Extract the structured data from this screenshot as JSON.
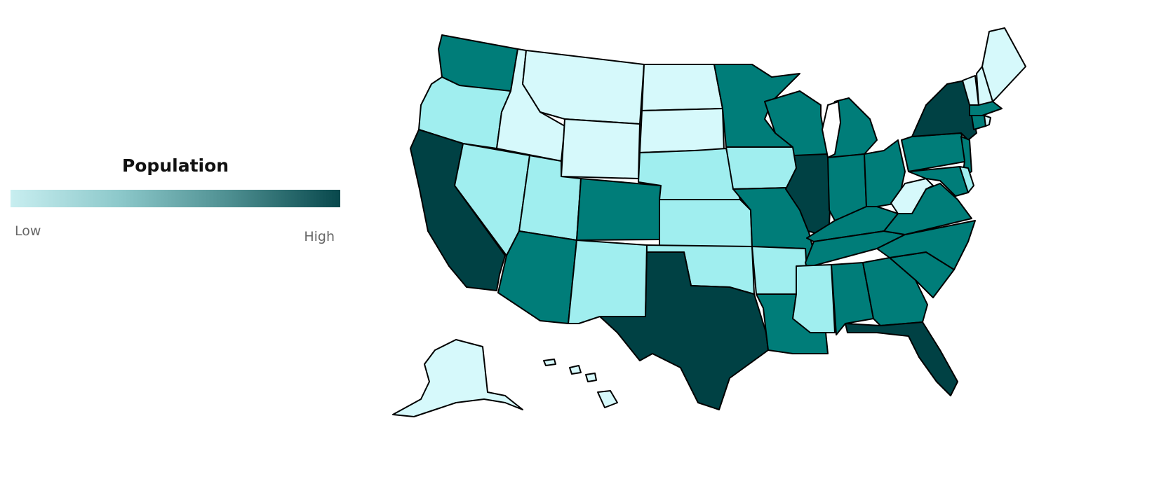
{
  "legend": {
    "title": "Population",
    "low_label": "Low",
    "high_label": "High",
    "color_low": "#c8eef0",
    "color_high": "#08484c"
  },
  "bin_colors": {
    "1": "#d6f9fb",
    "2": "#a0eeef",
    "3": "#007d79",
    "4": "#004144"
  },
  "chart_data": {
    "type": "choropleth",
    "measure": "Population",
    "scale": "ordinal bins from Low (1) to High (4)",
    "states": {
      "WA": 3,
      "OR": 2,
      "CA": 4,
      "ID": 1,
      "NV": 2,
      "MT": 1,
      "WY": 1,
      "UT": 2,
      "AZ": 3,
      "CO": 3,
      "NM": 2,
      "ND": 1,
      "SD": 1,
      "NE": 2,
      "KS": 2,
      "OK": 2,
      "TX": 4,
      "MN": 3,
      "IA": 2,
      "MO": 3,
      "AR": 2,
      "LA": 3,
      "WI": 3,
      "IL": 4,
      "MI": 3,
      "IN": 3,
      "OH": 3,
      "KY": 3,
      "TN": 3,
      "MS": 2,
      "AL": 3,
      "GA": 3,
      "FL": 4,
      "SC": 3,
      "NC": 3,
      "VA": 3,
      "WV": 1,
      "PA": 3,
      "NY": 4,
      "NJ": 3,
      "MD": 3,
      "DE": 2,
      "CT": 3,
      "RI": 1,
      "MA": 3,
      "VT": 1,
      "NH": 1,
      "ME": 1,
      "AK": 1,
      "HI": 1
    }
  }
}
